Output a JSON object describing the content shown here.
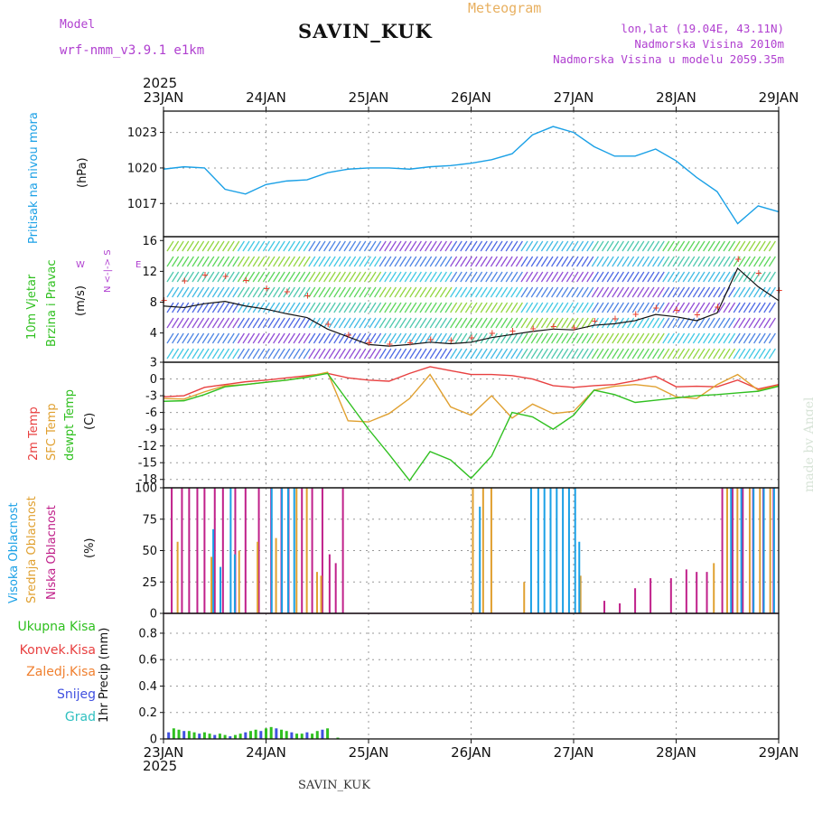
{
  "header": {
    "model_label": "Model",
    "model_name": "wrf-nmm_v3.9.1  e1km",
    "station": "SAVIN_KUK",
    "meteogram": "Meteogram",
    "lonlat": "lon,lat (19.04E, 43.11N)",
    "elevation": "Nadmorska Visina 2010m",
    "model_elevation": "Nadmorska Visina u modelu 2059.35m"
  },
  "footer": {
    "station": "SAVIN_KUK",
    "signature": "made by Angel"
  },
  "axes": {
    "year_top": "2025",
    "year_bottom": "2025",
    "dates": [
      "23JAN",
      "24JAN",
      "25JAN",
      "26JAN",
      "27JAN",
      "28JAN",
      "29JAN"
    ]
  },
  "panel_labels": {
    "pressure": [
      "Pritisak na nivou mora",
      "(hPa)"
    ],
    "wind": [
      "10m Vjetar",
      "Brzina i Pravac",
      "(m/s)"
    ],
    "wind_compass": [
      "N",
      "<-|->",
      "S",
      "W",
      "E"
    ],
    "temp": [
      "2m Temp",
      "SFC Temp",
      "dewpt Temp",
      "(C)"
    ],
    "cloud": [
      "Visoka Oblacnost",
      "Srednja Oblacnost",
      "Niska Oblacnost",
      "(%)"
    ],
    "precip": [
      "1hr Precip (mm)"
    ],
    "precip_legend": [
      "Ukupna Kisa",
      "Konvek.Kisa",
      "Zaledj.Kisa",
      "Snijeg",
      "Grad"
    ]
  },
  "colors": {
    "pressure": "#1aa0e6",
    "wind_speed": "#111111",
    "wind_gust": "#e84030",
    "temp2m": "#e84040",
    "sfc": "#e0a030",
    "dewpt": "#30c020",
    "cloud_high": "#1aa0e6",
    "cloud_mid": "#e0a030",
    "cloud_low": "#c0208a",
    "precip_total": "#30c020",
    "precip_conv": "#e84040",
    "precip_frz": "#f08030",
    "precip_snow": "#4050e0",
    "precip_hail": "#30c0c0"
  },
  "chart_data": [
    {
      "type": "line",
      "name": "pressure",
      "ylabel": "(hPa)",
      "yticks": [
        1017,
        1020,
        1023
      ],
      "ylim": [
        1014.2,
        1024.8
      ],
      "x": [
        0,
        0.2,
        0.4,
        0.6,
        0.8,
        1,
        1.2,
        1.4,
        1.6,
        1.8,
        2,
        2.2,
        2.4,
        2.6,
        2.8,
        3,
        3.2,
        3.4,
        3.6,
        3.8,
        4,
        4.2,
        4.4,
        4.6,
        4.8,
        5,
        5.2,
        5.4,
        5.6,
        5.8,
        6
      ],
      "values": [
        1019.9,
        1020.1,
        1020.0,
        1018.2,
        1017.8,
        1018.6,
        1018.9,
        1019.0,
        1019.6,
        1019.9,
        1020.0,
        1020.0,
        1019.9,
        1020.1,
        1020.2,
        1020.4,
        1020.7,
        1021.2,
        1022.8,
        1023.5,
        1023.0,
        1021.8,
        1021.0,
        1021.0,
        1021.6,
        1020.6,
        1019.2,
        1018.0,
        1015.3,
        1016.8,
        1016.3
      ]
    },
    {
      "type": "line",
      "name": "wind",
      "ylabel": "(m/s)",
      "yticks": [
        4,
        8,
        12,
        16
      ],
      "ylim": [
        0.2,
        16.5
      ],
      "x": [
        0,
        0.2,
        0.4,
        0.6,
        0.8,
        1,
        1.2,
        1.4,
        1.6,
        1.8,
        2,
        2.2,
        2.4,
        2.6,
        2.8,
        3,
        3.2,
        3.4,
        3.6,
        3.8,
        4,
        4.2,
        4.4,
        4.6,
        4.8,
        5,
        5.2,
        5.4,
        5.6,
        5.8,
        6
      ],
      "values": [
        7.5,
        7.3,
        7.8,
        8.1,
        7.5,
        7.1,
        6.5,
        6.0,
        4.5,
        3.5,
        2.5,
        2.3,
        2.5,
        2.8,
        2.6,
        2.8,
        3.4,
        3.8,
        4.2,
        4.5,
        4.4,
        5.0,
        5.2,
        5.6,
        6.4,
        6.1,
        5.6,
        6.6,
        12.4,
        10.0,
        8.2
      ],
      "gust": [
        8.3,
        10.8,
        11.6,
        11.4,
        10.9,
        9.8,
        9.4,
        8.9,
        5.2,
        3.8,
        2.8,
        2.6,
        2.8,
        3.2,
        3.1,
        3.4,
        4.0,
        4.3,
        4.6,
        4.9,
        4.7,
        5.6,
        5.9,
        6.5,
        7.3,
        7.0,
        6.4,
        7.4,
        13.6,
        11.8,
        9.6
      ]
    },
    {
      "type": "line",
      "name": "temperature",
      "ylabel": "(C)",
      "yticks": [
        3,
        0,
        -3,
        -6,
        -9,
        -12,
        -15,
        -18
      ],
      "ylim": [
        -19.5,
        3
      ],
      "x": [
        0,
        0.2,
        0.4,
        0.6,
        0.8,
        1,
        1.2,
        1.4,
        1.6,
        1.8,
        2,
        2.2,
        2.4,
        2.6,
        2.8,
        3,
        3.2,
        3.4,
        3.6,
        3.8,
        4,
        4.2,
        4.4,
        4.6,
        4.8,
        5,
        5.2,
        5.4,
        5.6,
        5.8,
        6
      ],
      "series": [
        {
          "name": "2m Temp",
          "values": [
            -3.2,
            -3.0,
            -1.5,
            -1.0,
            -0.5,
            -0.2,
            0.2,
            0.6,
            1.0,
            0.2,
            -0.2,
            -0.4,
            1.0,
            2.2,
            1.5,
            0.8,
            0.8,
            0.6,
            0.0,
            -1.2,
            -1.5,
            -1.2,
            -1.0,
            -0.3,
            0.5,
            -1.4,
            -1.3,
            -1.4,
            -0.2,
            -1.8,
            -1.0
          ]
        },
        {
          "name": "SFC Temp",
          "values": [
            -3.5,
            -3.6,
            -2.3,
            -1.2,
            -1.0,
            -0.6,
            -0.2,
            0.4,
            1.2,
            -7.5,
            -7.7,
            -6.2,
            -3.5,
            0.8,
            -5.0,
            -6.5,
            -3.0,
            -7.0,
            -4.5,
            -6.2,
            -5.8,
            -2.0,
            -1.3,
            -1.0,
            -1.4,
            -3.2,
            -3.5,
            -1.0,
            0.8,
            -2.0,
            -1.2
          ]
        },
        {
          "name": "dewpt Temp",
          "values": [
            -4.0,
            -3.9,
            -2.8,
            -1.4,
            -1.0,
            -0.6,
            -0.2,
            0.3,
            1.0,
            -4.0,
            -9.0,
            -13.5,
            -18.2,
            -13.0,
            -14.5,
            -17.8,
            -13.8,
            -6.0,
            -6.8,
            -9.0,
            -6.5,
            -2.0,
            -2.8,
            -4.2,
            -3.8,
            -3.4,
            -3.0,
            -2.8,
            -2.5,
            -2.2,
            -1.3
          ]
        }
      ]
    },
    {
      "type": "bar",
      "name": "cloud cover",
      "ylabel": "(%)",
      "yticks": [
        0,
        25,
        50,
        75,
        100
      ],
      "ylim": [
        0,
        100
      ],
      "low": [
        [
          0.08,
          100
        ],
        [
          0.18,
          100
        ],
        [
          0.25,
          100
        ],
        [
          0.33,
          100
        ],
        [
          0.4,
          100
        ],
        [
          0.5,
          100
        ],
        [
          0.58,
          100
        ],
        [
          0.7,
          100
        ],
        [
          0.8,
          100
        ],
        [
          0.93,
          100
        ],
        [
          1.05,
          100
        ],
        [
          1.15,
          100
        ],
        [
          1.22,
          100
        ],
        [
          1.35,
          100
        ],
        [
          1.45,
          100
        ],
        [
          1.55,
          100
        ],
        [
          1.75,
          100
        ],
        [
          1.68,
          40
        ],
        [
          1.62,
          47
        ],
        [
          4.3,
          10
        ],
        [
          4.45,
          8
        ],
        [
          4.6,
          20
        ],
        [
          4.75,
          28
        ],
        [
          4.95,
          28
        ],
        [
          5.1,
          35
        ],
        [
          5.2,
          33
        ],
        [
          5.3,
          33
        ],
        [
          5.45,
          100
        ],
        [
          5.55,
          100
        ],
        [
          5.65,
          100
        ],
        [
          5.75,
          100
        ],
        [
          5.85,
          100
        ],
        [
          5.95,
          100
        ]
      ],
      "mid": [
        [
          0.12,
          57
        ],
        [
          0.45,
          45
        ],
        [
          0.72,
          50
        ],
        [
          0.9,
          57
        ],
        [
          1.08,
          60
        ],
        [
          1.28,
          100
        ],
        [
          1.38,
          100
        ],
        [
          1.48,
          33
        ],
        [
          1.52,
          30
        ],
        [
          3.0,
          100
        ],
        [
          3.1,
          100
        ],
        [
          3.18,
          100
        ],
        [
          3.5,
          25
        ],
        [
          4.05,
          30
        ],
        [
          5.35,
          40
        ],
        [
          5.48,
          100
        ],
        [
          5.58,
          100
        ],
        [
          5.7,
          100
        ],
        [
          5.8,
          100
        ],
        [
          5.9,
          100
        ]
      ],
      "high": [
        [
          0.45,
          67
        ],
        [
          0.52,
          37
        ],
        [
          0.62,
          100
        ],
        [
          0.66,
          47
        ],
        [
          1.02,
          100
        ],
        [
          1.12,
          100
        ],
        [
          1.18,
          100
        ],
        [
          1.24,
          100
        ],
        [
          3.05,
          85
        ],
        [
          3.55,
          100
        ],
        [
          3.62,
          100
        ],
        [
          3.68,
          100
        ],
        [
          3.74,
          100
        ],
        [
          3.8,
          100
        ],
        [
          3.86,
          100
        ],
        [
          3.92,
          100
        ],
        [
          3.98,
          100
        ],
        [
          4.02,
          57
        ],
        [
          5.5,
          100
        ],
        [
          5.6,
          100
        ],
        [
          5.72,
          100
        ],
        [
          5.82,
          100
        ],
        [
          5.92,
          100
        ]
      ]
    },
    {
      "type": "bar",
      "name": "1hr precipitation",
      "ylabel": "1hr Precip (mm)",
      "yticks": [
        0,
        0.2,
        0.4,
        0.6,
        0.8
      ],
      "ylim": [
        0,
        0.95
      ],
      "x": [
        0.05,
        0.1,
        0.15,
        0.2,
        0.25,
        0.3,
        0.35,
        0.4,
        0.45,
        0.5,
        0.55,
        0.6,
        0.65,
        0.7,
        0.75,
        0.8,
        0.85,
        0.9,
        0.95,
        1.0,
        1.05,
        1.1,
        1.15,
        1.2,
        1.25,
        1.3,
        1.35,
        1.4,
        1.45,
        1.5,
        1.55,
        1.6,
        1.7
      ],
      "values": [
        0.05,
        0.08,
        0.07,
        0.06,
        0.06,
        0.05,
        0.04,
        0.05,
        0.04,
        0.03,
        0.04,
        0.03,
        0.02,
        0.03,
        0.04,
        0.05,
        0.06,
        0.07,
        0.06,
        0.08,
        0.09,
        0.08,
        0.07,
        0.06,
        0.05,
        0.04,
        0.04,
        0.05,
        0.04,
        0.06,
        0.07,
        0.08,
        0.01
      ]
    }
  ]
}
